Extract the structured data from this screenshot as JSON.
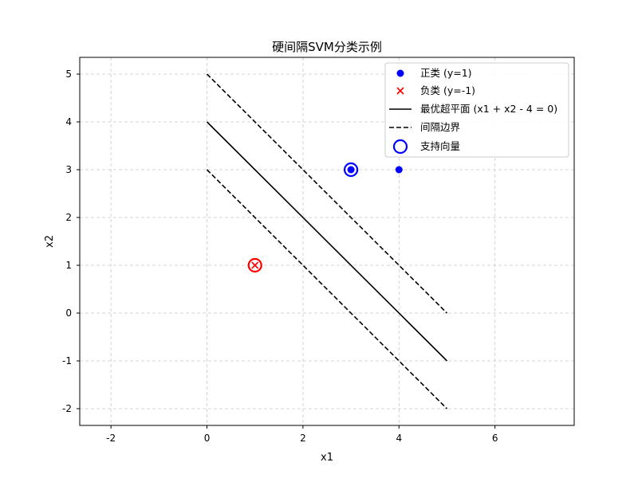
{
  "chart_data": {
    "type": "scatter",
    "title": "硬间隔SVM分类示例",
    "xlabel": "x1",
    "ylabel": "x2",
    "xlim": [
      -2.65,
      7.65
    ],
    "ylim": [
      -2.35,
      5.35
    ],
    "xticks": [
      -2,
      0,
      2,
      4,
      6
    ],
    "yticks": [
      -2,
      -1,
      0,
      1,
      2,
      3,
      4,
      5
    ],
    "grid": true,
    "legend_position": "top-right",
    "colors": {
      "positive": "#0000ff",
      "negative": "#ff0000",
      "line": "#000000",
      "grid": "#c8c8c8"
    },
    "series": [
      {
        "name": "正类 (y=1)",
        "kind": "scatter",
        "marker": "circle",
        "color": "#0000ff",
        "points": [
          [
            3,
            3
          ],
          [
            4,
            3
          ]
        ]
      },
      {
        "name": "负类 (y=-1)",
        "kind": "scatter",
        "marker": "x",
        "color": "#ff0000",
        "points": [
          [
            1,
            1
          ]
        ]
      },
      {
        "name": "最优超平面 (x1 + x2 - 4 = 0)",
        "kind": "line",
        "style": "solid",
        "color": "#000000",
        "points": [
          [
            0,
            4
          ],
          [
            5,
            -1
          ]
        ]
      },
      {
        "name": "间隔边界",
        "kind": "line",
        "style": "dashed",
        "color": "#000000",
        "lines": [
          [
            [
              0,
              5
            ],
            [
              5,
              0
            ]
          ],
          [
            [
              0,
              3
            ],
            [
              5,
              -2
            ]
          ]
        ]
      },
      {
        "name": "支持向量",
        "kind": "scatter",
        "marker": "ring",
        "points": [
          {
            "x": 3,
            "y": 3,
            "color": "#0000ff"
          },
          {
            "x": 1,
            "y": 1,
            "color": "#ff0000"
          }
        ]
      }
    ]
  }
}
